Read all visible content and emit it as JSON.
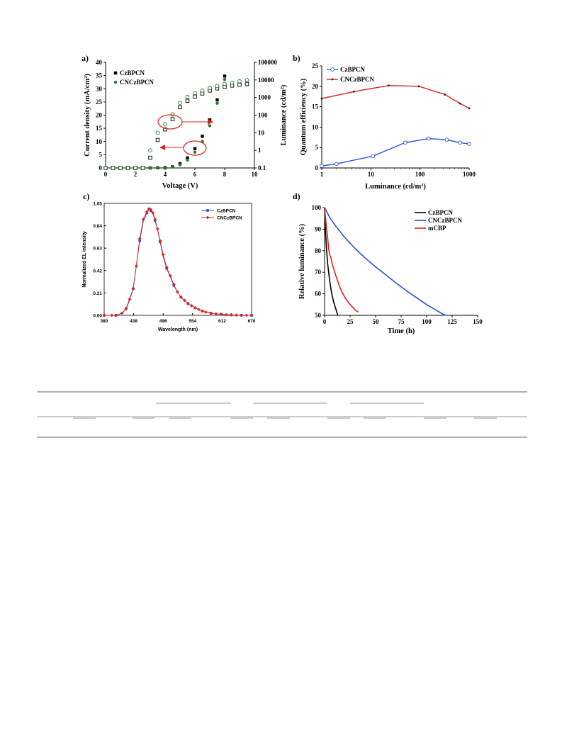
{
  "panels": {
    "a": "a)",
    "b": "b)",
    "c": "c)",
    "d": "d)"
  },
  "colors": {
    "black": "#000000",
    "green": "#1e7a2a",
    "blue": "#2a4fd8",
    "red": "#e02020",
    "annotation": "#e02020",
    "rule": "#333333"
  },
  "chart_data": [
    {
      "id": "a",
      "type": "scatter",
      "xlabel": "Voltage (V)",
      "ylabel": "Current density (mA/cm²)",
      "y2label": "Luminance (cd/m²)",
      "xlim": [
        0,
        10
      ],
      "ylim": [
        0,
        40
      ],
      "y2lim": [
        0.1,
        100000
      ],
      "y2scale": "log",
      "xticks": [
        "0",
        "2",
        "4",
        "6",
        "8",
        "10"
      ],
      "yticks": [
        "0",
        "5",
        "10",
        "15",
        "20",
        "25",
        "30",
        "35",
        "40"
      ],
      "y2ticks": [
        "0.1",
        "1",
        "10",
        "100",
        "1000",
        "10000",
        "100000"
      ],
      "legend": [
        "CzBPCN",
        "CNCzBPCN"
      ],
      "legend_position": "top-left",
      "series": [
        {
          "name": "CzBPCN",
          "marker": "filled-square",
          "axis": "left",
          "x": [
            0,
            0.5,
            1,
            1.5,
            2,
            2.5,
            3,
            3.5,
            4,
            4.5,
            5,
            5.5,
            6,
            6.5,
            7,
            7.5,
            8
          ],
          "y": [
            0,
            0,
            0,
            0,
            0,
            0,
            0,
            0.05,
            0.15,
            0.45,
            1.6,
            3.8,
            7.3,
            12,
            18.2,
            25.8,
            34.8
          ]
        },
        {
          "name": "CNCzBPCN",
          "marker": "filled-circle",
          "axis": "left",
          "x": [
            0,
            0.5,
            1,
            1.5,
            2,
            2.5,
            3,
            3.5,
            4,
            4.5,
            5,
            5.5,
            6,
            6.5,
            7,
            7.5,
            8
          ],
          "y": [
            0,
            0,
            0,
            0,
            0,
            0,
            0,
            0.05,
            0.1,
            0.35,
            1.2,
            3.0,
            6.0,
            10.0,
            16.0,
            24.5,
            33.5
          ]
        },
        {
          "name": "CzBPCN",
          "marker": "open-square",
          "axis": "right",
          "x": [
            0,
            0.5,
            1,
            1.5,
            2,
            2.5,
            3,
            3.5,
            4,
            4.5,
            5,
            5.5,
            6,
            6.5,
            7,
            7.5,
            8,
            8.5,
            9,
            9.5
          ],
          "y": [
            0.1,
            0.1,
            0.1,
            0.1,
            0.1,
            0.1,
            0.38,
            3.9,
            15.5,
            60,
            280,
            650,
            1130,
            1700,
            2500,
            3300,
            4100,
            4800,
            5400,
            5900
          ]
        },
        {
          "name": "CNCzBPCN",
          "marker": "open-circle",
          "axis": "right",
          "x": [
            0,
            0.5,
            1,
            1.5,
            2,
            2.5,
            3,
            3.5,
            4,
            4.5,
            5,
            5.5,
            6,
            6.5,
            7,
            7.5,
            8,
            8.5,
            9,
            9.5
          ],
          "y": [
            0.1,
            0.1,
            0.1,
            0.1,
            0.1,
            0.1,
            1.0,
            10,
            30,
            110,
            500,
            1100,
            1800,
            2500,
            3500,
            4500,
            6000,
            7000,
            8500,
            10000
          ]
        }
      ]
    },
    {
      "id": "b",
      "type": "line",
      "xlabel": "Luminance (cd/m²)",
      "ylabel": "Quantum efficiency (%)",
      "xscale": "log",
      "xlim": [
        1,
        1000
      ],
      "ylim": [
        0,
        25
      ],
      "xticks": [
        "1",
        "10",
        "100",
        "1000"
      ],
      "yticks": [
        "0",
        "5",
        "10",
        "15",
        "20",
        "25"
      ],
      "legend": [
        "CzBPCN",
        "CNCzBPCN"
      ],
      "legend_position": "top-left",
      "series": [
        {
          "name": "CzBPCN",
          "color": "#2a4fd8",
          "marker": "open-circle",
          "x": [
            1,
            2,
            11,
            50,
            150,
            350,
            650,
            1000
          ],
          "y": [
            0.5,
            1.0,
            2.9,
            6.2,
            7.2,
            6.9,
            6.2,
            5.9
          ]
        },
        {
          "name": "CNCzBPCN",
          "color": "#e02020",
          "marker": "small-dot",
          "x": [
            1,
            4.5,
            23,
            95,
            320,
            650,
            1000
          ],
          "y": [
            17.0,
            18.7,
            20.2,
            20.0,
            18.0,
            15.8,
            14.6
          ]
        }
      ]
    },
    {
      "id": "c",
      "type": "line",
      "xlabel": "Wavelength (nm)",
      "ylabel": "Normalized EL intensity",
      "xlim": [
        380,
        670
      ],
      "ylim": [
        0,
        1.05
      ],
      "xticks": [
        "380",
        "438",
        "496",
        "554",
        "612",
        "670"
      ],
      "yticks": [
        "0.00",
        "0.21",
        "0.42",
        "0.63",
        "0.84",
        "1.05"
      ],
      "legend": [
        "CzBPCN",
        "CNCzBPCN"
      ],
      "legend_position": "top-right",
      "series": [
        {
          "name": "CzBPCN",
          "color": "#2a4fd8",
          "marker": "square",
          "x": [
            380,
            395,
            403,
            415,
            423,
            430,
            437,
            443,
            450,
            457,
            464,
            468,
            472,
            476,
            480,
            485,
            490,
            496,
            503,
            510,
            517,
            524,
            531,
            538,
            545,
            552,
            559,
            566,
            573,
            580,
            590,
            600,
            610,
            620,
            630,
            640,
            650,
            660,
            670
          ],
          "y": [
            0,
            0,
            0,
            0.02,
            0.06,
            0.14,
            0.25,
            0.45,
            0.7,
            0.88,
            0.96,
            0.99,
            0.98,
            0.95,
            0.89,
            0.8,
            0.69,
            0.55,
            0.44,
            0.36,
            0.28,
            0.22,
            0.17,
            0.14,
            0.11,
            0.09,
            0.07,
            0.055,
            0.04,
            0.03,
            0.02,
            0.014,
            0.01,
            0.006,
            0.004,
            0.002,
            0.001,
            0,
            0
          ]
        },
        {
          "name": "CNCzBPCN",
          "color": "#e02020",
          "marker": "diamond",
          "x": [
            380,
            395,
            403,
            415,
            423,
            430,
            437,
            443,
            450,
            457,
            464,
            468,
            472,
            476,
            480,
            485,
            490,
            496,
            503,
            510,
            517,
            524,
            531,
            538,
            545,
            552,
            559,
            566,
            573,
            580,
            590,
            600,
            610,
            620,
            630,
            640,
            650,
            660,
            670
          ],
          "y": [
            0,
            0,
            0,
            0.02,
            0.065,
            0.15,
            0.25,
            0.46,
            0.72,
            0.9,
            0.97,
            1.0,
            0.99,
            0.96,
            0.9,
            0.81,
            0.7,
            0.57,
            0.45,
            0.37,
            0.29,
            0.22,
            0.17,
            0.14,
            0.11,
            0.09,
            0.07,
            0.055,
            0.04,
            0.03,
            0.02,
            0.014,
            0.01,
            0.006,
            0.004,
            0.002,
            0.001,
            0,
            0
          ]
        }
      ]
    },
    {
      "id": "d",
      "type": "line",
      "xlabel": "Time (h)",
      "ylabel": "Relative luminance (%)",
      "xlim": [
        0,
        150
      ],
      "ylim": [
        50,
        100
      ],
      "xticks": [
        "0",
        "25",
        "50",
        "75",
        "100",
        "125",
        "150"
      ],
      "yticks": [
        "50",
        "60",
        "70",
        "80",
        "90",
        "100"
      ],
      "legend": [
        "CzBPCN",
        "CNCzBPCN",
        "mCBP"
      ],
      "legend_position": "top-right",
      "series": [
        {
          "name": "CzBPCN",
          "color": "#000000",
          "x": [
            0,
            1,
            2,
            3,
            5,
            7,
            9,
            11,
            13
          ],
          "y": [
            100,
            88,
            80,
            74,
            66,
            60,
            56,
            53,
            50
          ]
        },
        {
          "name": "CNCzBPCN",
          "color": "#2a4fd8",
          "x": [
            0,
            5,
            10,
            20,
            30,
            40,
            50,
            60,
            70,
            80,
            90,
            100,
            110,
            118
          ],
          "y": [
            100,
            95.5,
            92,
            86,
            81,
            76.5,
            72.5,
            68.8,
            65,
            61.5,
            58.2,
            55,
            52.2,
            50
          ]
        },
        {
          "name": "mCBP",
          "color": "#e02020",
          "x": [
            0,
            1,
            2,
            3,
            4,
            5,
            6,
            8,
            10,
            12,
            15,
            18,
            21,
            24,
            27,
            30,
            33
          ],
          "y": [
            100,
            95,
            90,
            86,
            81,
            78,
            77,
            73,
            70,
            67,
            63,
            60,
            57.5,
            55.5,
            54,
            52.5,
            51.5
          ]
        }
      ]
    }
  ]
}
